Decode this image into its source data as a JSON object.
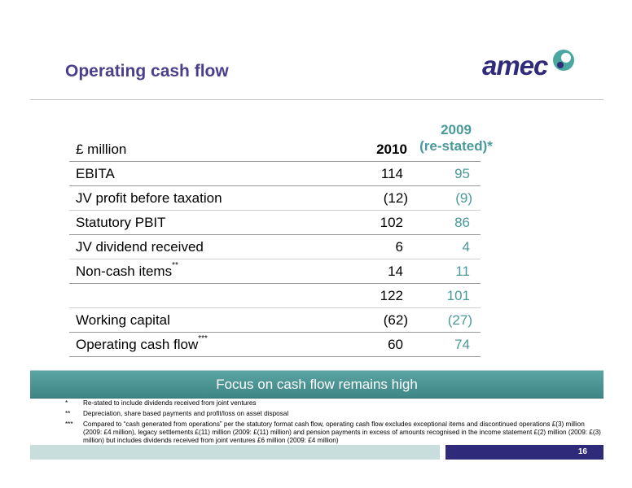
{
  "slide": {
    "title": "Operating cash flow",
    "logo_text": "amec",
    "page_number": "16",
    "banner": "Focus on cash flow remains high"
  },
  "table": {
    "header": {
      "label": "£ million",
      "col_2010": "2010",
      "col_2009_line1": "2009",
      "col_2009_line2": "(re-stated)*"
    },
    "rows": [
      {
        "label": "EBITA",
        "sup": "",
        "v2010": "114",
        "v2009": "95"
      },
      {
        "label": "JV profit before taxation",
        "sup": "",
        "v2010": "(12)",
        "v2009": "(9)"
      },
      {
        "label": "Statutory PBIT",
        "sup": "",
        "v2010": "102",
        "v2009": "86"
      },
      {
        "label": "JV dividend received",
        "sup": "",
        "v2010": "6",
        "v2009": "4"
      },
      {
        "label": "Non-cash items",
        "sup": "**",
        "v2010": "14",
        "v2009": "11"
      },
      {
        "label": "",
        "sup": "",
        "v2010": "122",
        "v2009": "101"
      },
      {
        "label": "Working capital",
        "sup": "",
        "v2010": "(62)",
        "v2009": "(27)"
      },
      {
        "label": "Operating cash flow",
        "sup": "***",
        "v2010": "60",
        "v2009": "74"
      }
    ]
  },
  "footnotes": [
    {
      "mark": "*",
      "text": "Re-stated to include dividends received from joint ventures"
    },
    {
      "mark": "**",
      "text": "Depreciation, share based payments and profit/loss on asset disposal"
    },
    {
      "mark": "***",
      "text": "Compared to “cash generated from operations” per the statutory format cash flow, operating cash flow excludes exceptional items and discontinued operations £(3) million (2009: £4 million), legacy settlements £(11) million (2009: £(11) million) and pension payments in excess of amounts recognised in the income statement £(2) million (2009: £(3) million) but includes dividends received from joint ventures £6 million (2009: £4 million)"
    }
  ],
  "colors": {
    "title": "#4b3f8c",
    "accent_teal": "#4a9a9a",
    "logo_navy": "#2f2a7a"
  }
}
